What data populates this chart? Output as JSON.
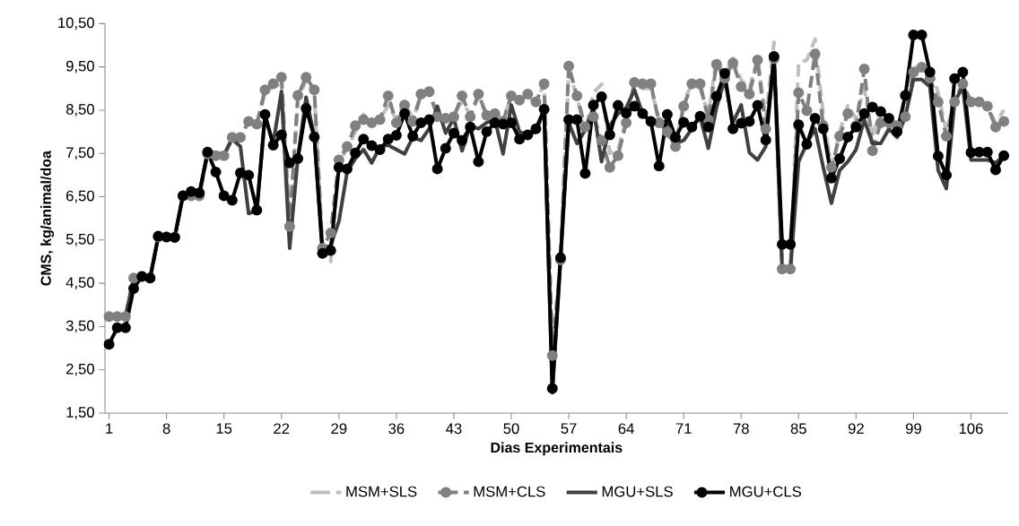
{
  "chart_data": {
    "type": "line",
    "xlabel": "Dias Experimentais",
    "ylabel": "CMS, kg/animal/doa",
    "legend": "bottom",
    "grid": false,
    "x": [
      1,
      2,
      3,
      4,
      5,
      6,
      7,
      8,
      9,
      10,
      11,
      12,
      13,
      14,
      15,
      16,
      17,
      18,
      19,
      20,
      21,
      22,
      23,
      24,
      25,
      26,
      27,
      28,
      29,
      30,
      31,
      32,
      33,
      34,
      35,
      36,
      37,
      38,
      39,
      40,
      41,
      42,
      43,
      44,
      45,
      46,
      47,
      48,
      49,
      50,
      51,
      52,
      53,
      54,
      55,
      56,
      57,
      58,
      59,
      60,
      61,
      62,
      63,
      64,
      65,
      66,
      67,
      68,
      69,
      70,
      71,
      72,
      73,
      74,
      75,
      76,
      77,
      78,
      79,
      80,
      81,
      82,
      83,
      84,
      85,
      86,
      87,
      88,
      89,
      90,
      91,
      92,
      93,
      94,
      95,
      96,
      97,
      98,
      99,
      100,
      101,
      102,
      103,
      104,
      105,
      106,
      107,
      108,
      109,
      110
    ],
    "xlim": [
      0.5,
      110.5
    ],
    "xticks": [
      1,
      8,
      15,
      22,
      29,
      36,
      43,
      50,
      57,
      64,
      71,
      78,
      85,
      92,
      99,
      106
    ],
    "ylim": [
      1.5,
      10.5
    ],
    "yticks": [
      {
        "value": 1.5,
        "label": "1,50"
      },
      {
        "value": 2.5,
        "label": "2,50"
      },
      {
        "value": 3.5,
        "label": "3,50"
      },
      {
        "value": 4.5,
        "label": "4,50"
      },
      {
        "value": 5.5,
        "label": "5,50"
      },
      {
        "value": 6.5,
        "label": "6,50"
      },
      {
        "value": 7.5,
        "label": "7,50"
      },
      {
        "value": 8.5,
        "label": "8,50"
      },
      {
        "value": 9.5,
        "label": "9,50"
      },
      {
        "value": 10.5,
        "label": "10,50"
      }
    ],
    "series": [
      {
        "name": "MSM+SLS",
        "color": "#bfbfbf",
        "line_style": "dashed",
        "marker": "none",
        "values": [
          3.73,
          3.73,
          3.73,
          4.62,
          4.66,
          4.62,
          5.57,
          5.57,
          5.57,
          6.52,
          6.52,
          6.52,
          7.49,
          7.45,
          7.45,
          7.87,
          7.87,
          8.24,
          8.18,
          8.9,
          9.05,
          9.1,
          5.9,
          8.7,
          9.2,
          8.9,
          5.3,
          5.0,
          7.3,
          7.6,
          8.0,
          8.4,
          8.2,
          8.3,
          8.6,
          8.3,
          8.7,
          8.3,
          8.8,
          8.9,
          8.4,
          8.3,
          8.4,
          8.7,
          8.4,
          8.8,
          8.4,
          8.4,
          8.3,
          8.8,
          8.7,
          8.8,
          8.7,
          9.1,
          2.9,
          5.1,
          9.4,
          8.8,
          8.0,
          8.9,
          9.1,
          7.5,
          7.6,
          8.3,
          9.1,
          9.0,
          9.0,
          8.3,
          7.9,
          7.7,
          8.7,
          9.1,
          9.0,
          8.4,
          9.7,
          9.3,
          9.7,
          9.2,
          9.0,
          9.7,
          8.3,
          10.07,
          4.9,
          4.9,
          9.59,
          9.66,
          10.14,
          8.4,
          7.1,
          8.0,
          8.6,
          8.3,
          9.0,
          7.9,
          8.5,
          8.3,
          8.2,
          8.5,
          9.5,
          9.5,
          9.5,
          8.9,
          8.0,
          8.8,
          9.1,
          8.7,
          8.7,
          8.6,
          8.2,
          8.5
        ]
      },
      {
        "name": "MSM+CLS",
        "color": "#808080",
        "line_style": "dashed",
        "marker": "circle",
        "values": [
          3.73,
          3.73,
          3.73,
          4.62,
          4.66,
          4.62,
          5.57,
          5.57,
          5.57,
          6.52,
          6.52,
          6.52,
          7.49,
          7.45,
          7.45,
          7.87,
          7.87,
          8.24,
          8.18,
          8.97,
          9.11,
          9.26,
          5.81,
          8.84,
          9.26,
          8.97,
          5.31,
          5.66,
          7.35,
          7.66,
          8.14,
          8.28,
          8.21,
          8.28,
          8.83,
          8.21,
          8.62,
          8.24,
          8.87,
          8.93,
          8.35,
          8.31,
          8.35,
          8.83,
          8.35,
          8.87,
          8.38,
          8.42,
          8.24,
          8.83,
          8.73,
          8.87,
          8.69,
          9.11,
          2.83,
          5.04,
          9.52,
          8.83,
          8.11,
          8.35,
          7.8,
          7.18,
          7.45,
          8.21,
          9.14,
          9.11,
          9.11,
          8.21,
          8.0,
          7.66,
          8.59,
          9.11,
          9.11,
          8.28,
          9.56,
          9.24,
          9.59,
          9.04,
          8.87,
          9.66,
          8.07,
          9.69,
          4.83,
          4.83,
          8.9,
          8.49,
          9.8,
          8.14,
          7.18,
          7.9,
          8.42,
          8.14,
          9.45,
          7.56,
          8.21,
          8.21,
          8.14,
          8.35,
          9.38,
          9.49,
          9.24,
          8.69,
          7.9,
          8.69,
          9.11,
          8.69,
          8.69,
          8.59,
          8.11,
          8.24
        ]
      },
      {
        "name": "MGU+SLS",
        "color": "#404040",
        "line_style": "solid",
        "marker": "none",
        "values": [
          3.73,
          3.73,
          3.73,
          4.62,
          4.66,
          4.62,
          5.57,
          5.57,
          5.57,
          6.55,
          6.55,
          6.55,
          7.52,
          7.52,
          7.47,
          7.83,
          7.66,
          6.11,
          6.18,
          8.35,
          7.73,
          8.93,
          5.31,
          7.4,
          8.8,
          7.9,
          5.3,
          5.38,
          5.93,
          7.07,
          7.38,
          7.59,
          7.28,
          7.66,
          7.69,
          7.59,
          7.49,
          7.87,
          7.8,
          8.07,
          8.59,
          7.97,
          8.31,
          7.56,
          8.14,
          8.07,
          8.21,
          8.28,
          7.49,
          8.62,
          8.0,
          7.93,
          8.0,
          8.49,
          1.97,
          5.04,
          8.21,
          7.73,
          8.04,
          8.56,
          7.31,
          8.14,
          8.42,
          8.56,
          8.97,
          8.42,
          8.21,
          8.14,
          8.28,
          7.73,
          7.8,
          8.07,
          8.35,
          7.62,
          8.56,
          9.21,
          8.21,
          8.62,
          7.52,
          7.35,
          7.66,
          9.73,
          4.8,
          4.8,
          7.31,
          7.73,
          8.07,
          7.18,
          6.35,
          7.11,
          7.31,
          7.59,
          8.28,
          7.73,
          7.73,
          8.07,
          7.87,
          8.35,
          9.21,
          9.21,
          9.04,
          7.11,
          6.69,
          8.69,
          9.04,
          7.35,
          7.35,
          7.35,
          7.28,
          7.45
        ]
      },
      {
        "name": "MGU+CLS",
        "color": "#000000",
        "line_style": "solid",
        "marker": "circle",
        "values": [
          3.09,
          3.47,
          3.47,
          4.38,
          4.66,
          4.62,
          5.59,
          5.57,
          5.56,
          6.52,
          6.62,
          6.59,
          7.53,
          7.07,
          6.52,
          6.42,
          7.05,
          7.0,
          6.19,
          8.4,
          7.69,
          7.93,
          7.28,
          7.38,
          8.54,
          7.88,
          5.19,
          5.26,
          7.18,
          7.14,
          7.51,
          7.83,
          7.68,
          7.59,
          7.83,
          7.92,
          8.42,
          7.9,
          8.21,
          8.28,
          7.14,
          7.62,
          7.97,
          7.8,
          8.11,
          7.31,
          8.0,
          8.21,
          8.18,
          8.21,
          7.83,
          7.93,
          8.07,
          8.52,
          2.07,
          5.09,
          8.28,
          8.28,
          7.04,
          8.62,
          8.81,
          7.93,
          8.61,
          8.43,
          8.59,
          8.42,
          8.24,
          7.21,
          8.4,
          7.87,
          8.22,
          8.11,
          8.36,
          8.11,
          8.82,
          9.35,
          8.07,
          8.2,
          8.24,
          8.61,
          7.81,
          9.74,
          5.4,
          5.4,
          8.16,
          7.71,
          8.31,
          8.07,
          6.93,
          7.38,
          7.88,
          8.11,
          8.42,
          8.57,
          8.47,
          8.31,
          8.0,
          8.84,
          10.24,
          10.24,
          9.38,
          7.44,
          7.0,
          9.23,
          9.38,
          7.52,
          7.53,
          7.53,
          7.12,
          7.45
        ]
      }
    ]
  }
}
